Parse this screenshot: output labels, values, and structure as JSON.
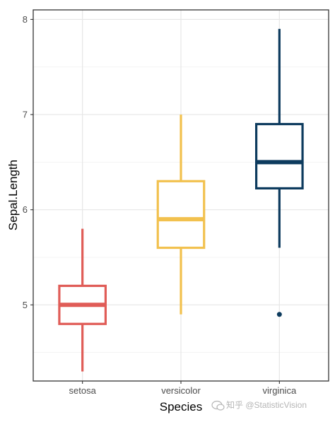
{
  "chart_data": {
    "type": "boxplot",
    "title": "",
    "xlabel": "Species",
    "ylabel": "Sepal.Length",
    "categories": [
      "setosa",
      "versicolor",
      "virginica"
    ],
    "ylim": [
      4.2,
      8.1
    ],
    "yticks": [
      "5",
      "6",
      "7",
      "8"
    ],
    "ytick_values": [
      5,
      6,
      7,
      8
    ],
    "grid": true,
    "legend": "none",
    "boxes": [
      {
        "category": "setosa",
        "color": "#e05c57",
        "whisker_low": 4.3,
        "q1": 4.8,
        "median": 5.0,
        "q3": 5.2,
        "whisker_high": 5.8,
        "outliers": []
      },
      {
        "category": "versicolor",
        "color": "#f2c14e",
        "whisker_low": 4.9,
        "q1": 5.6,
        "median": 5.9,
        "q3": 6.3,
        "whisker_high": 7.0,
        "outliers": []
      },
      {
        "category": "virginica",
        "color": "#0d3b5e",
        "whisker_low": 5.6,
        "q1": 6.225,
        "median": 6.5,
        "q3": 6.9,
        "whisker_high": 7.9,
        "outliers": [
          4.9
        ]
      }
    ]
  },
  "watermark": "知乎 @StatisticVision",
  "watermark_icon": "wechat-icon"
}
